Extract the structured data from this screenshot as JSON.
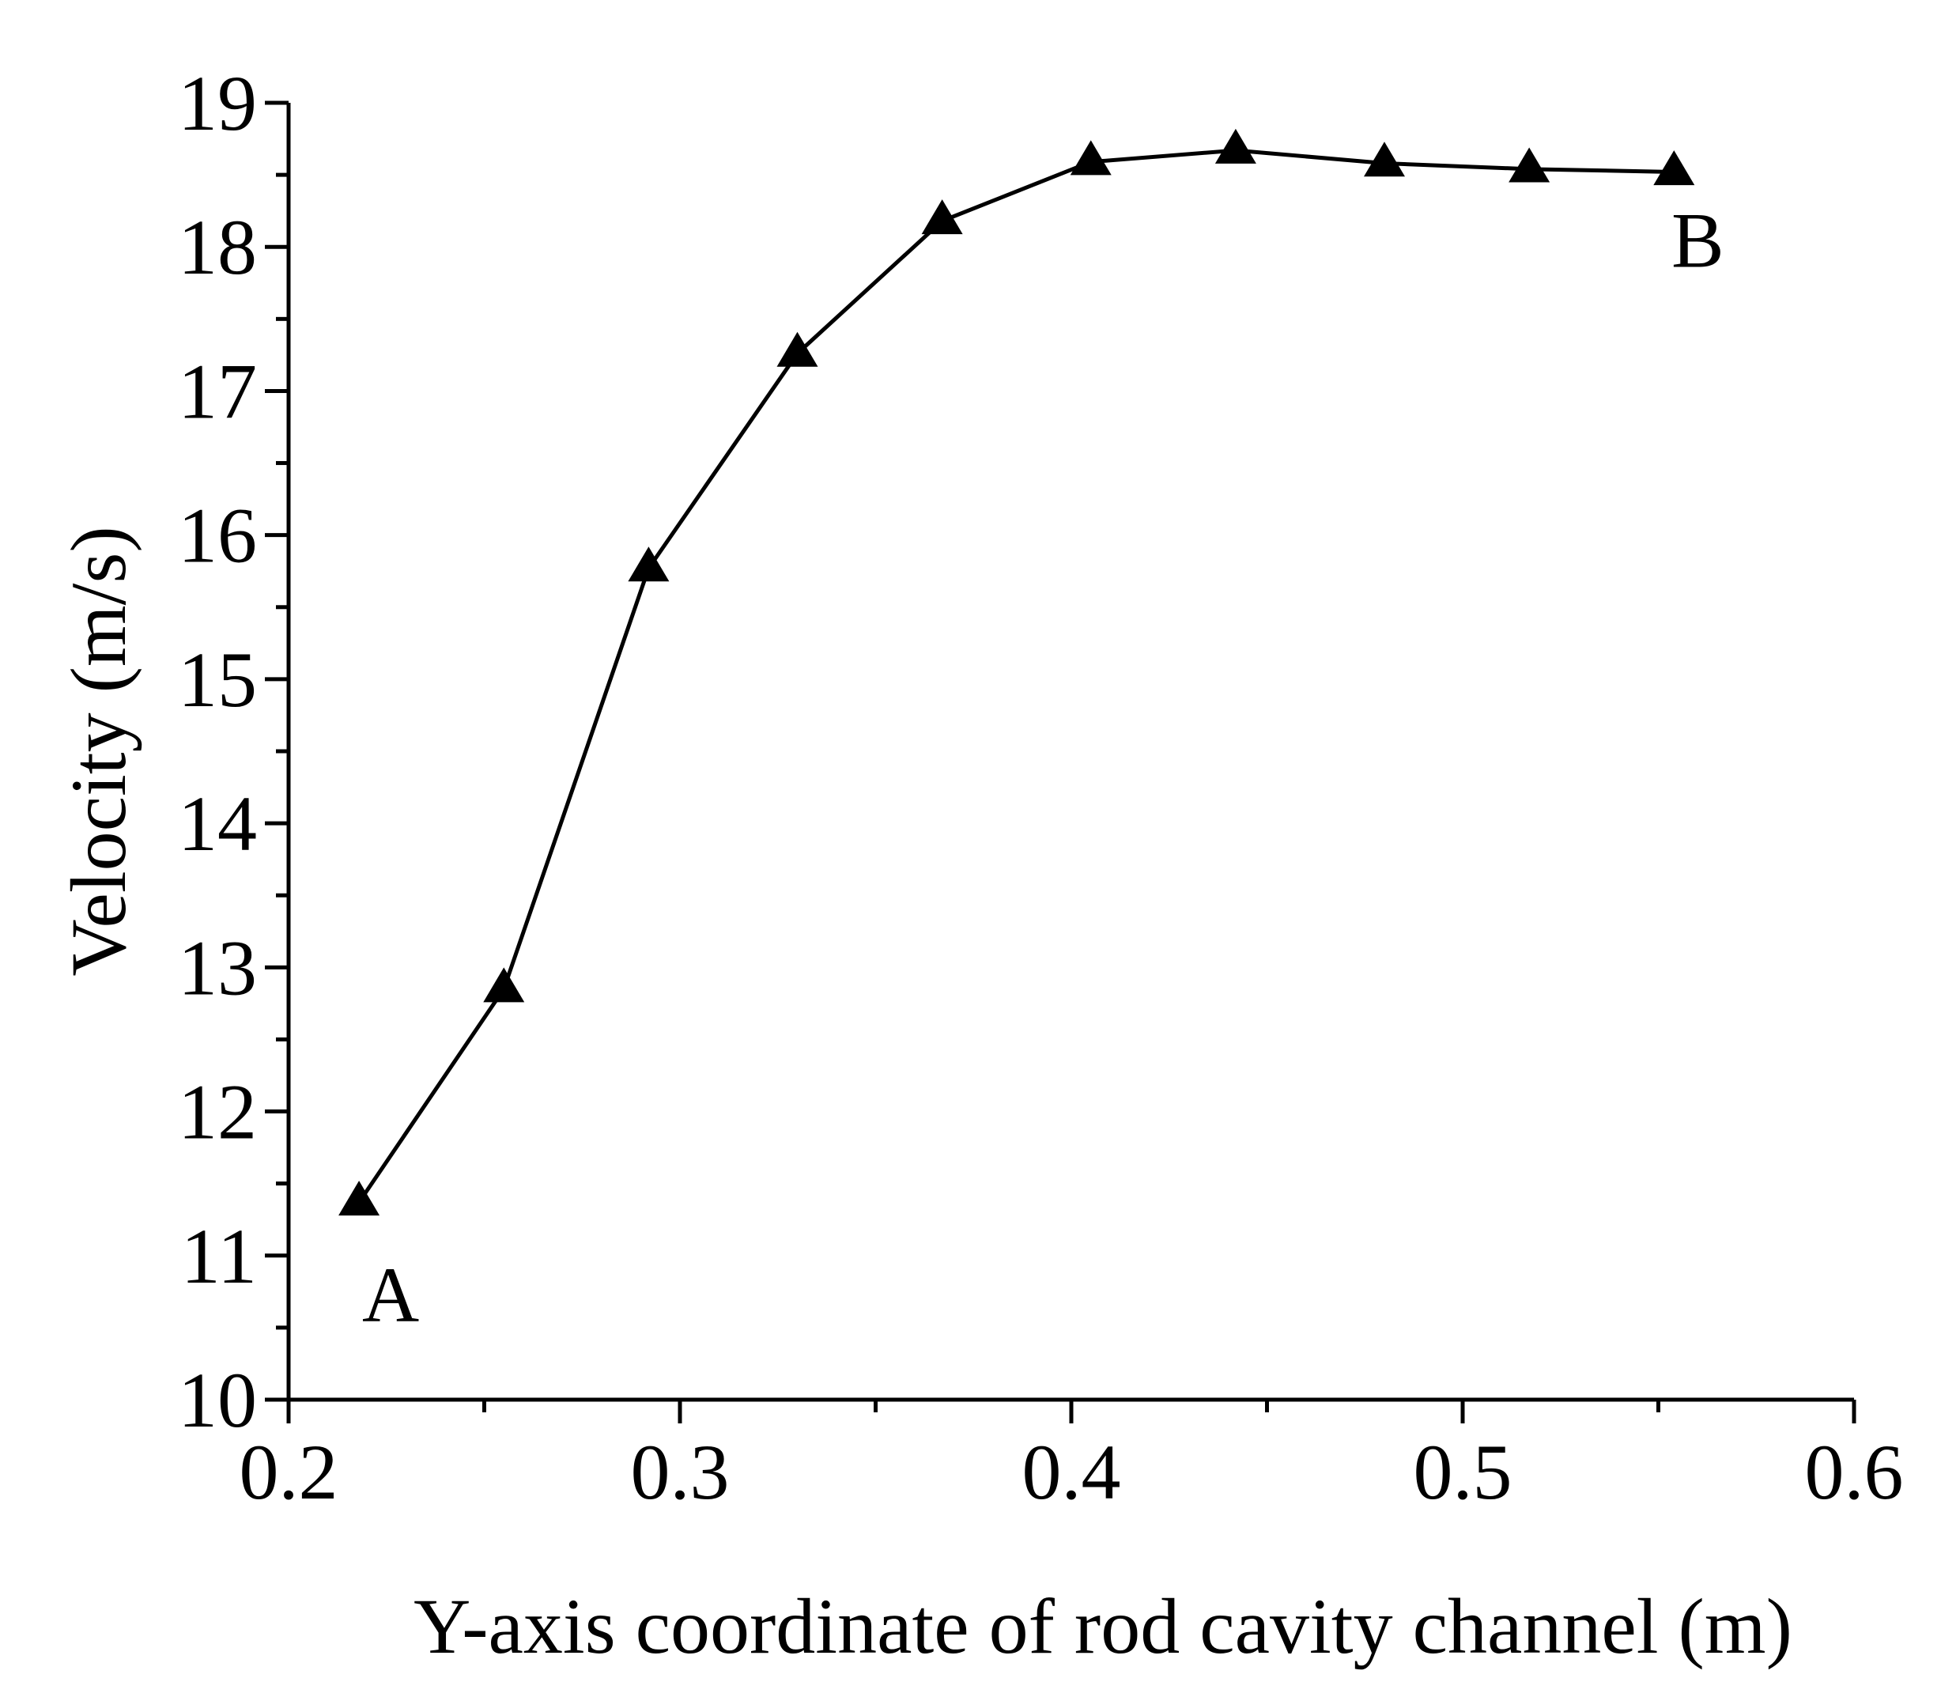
{
  "chart_data": {
    "type": "line",
    "title": "",
    "xlabel": "Y-axis coordinate of  rod cavity channel (m)",
    "ylabel": "Velocity (m/s)",
    "xlim": [
      0.2,
      0.6
    ],
    "ylim": [
      10,
      19
    ],
    "x_ticks": [
      "0.2",
      "0.3",
      "0.4",
      "0.5",
      "0.6"
    ],
    "y_ticks": [
      "10",
      "11",
      "12",
      "13",
      "14",
      "15",
      "16",
      "17",
      "18",
      "19"
    ],
    "grid": false,
    "marker": "triangle",
    "series": [
      {
        "x": [
          0.218,
          0.255,
          0.292,
          0.33,
          0.367,
          0.405,
          0.442,
          0.48,
          0.517,
          0.554
        ],
        "y": [
          11.37,
          12.85,
          15.77,
          17.26,
          18.18,
          18.59,
          18.67,
          18.58,
          18.54,
          18.52
        ]
      }
    ],
    "annotations": [
      {
        "text": "A",
        "x": 0.218,
        "y": 11.37
      },
      {
        "text": "B",
        "x": 0.554,
        "y": 18.52
      }
    ]
  }
}
